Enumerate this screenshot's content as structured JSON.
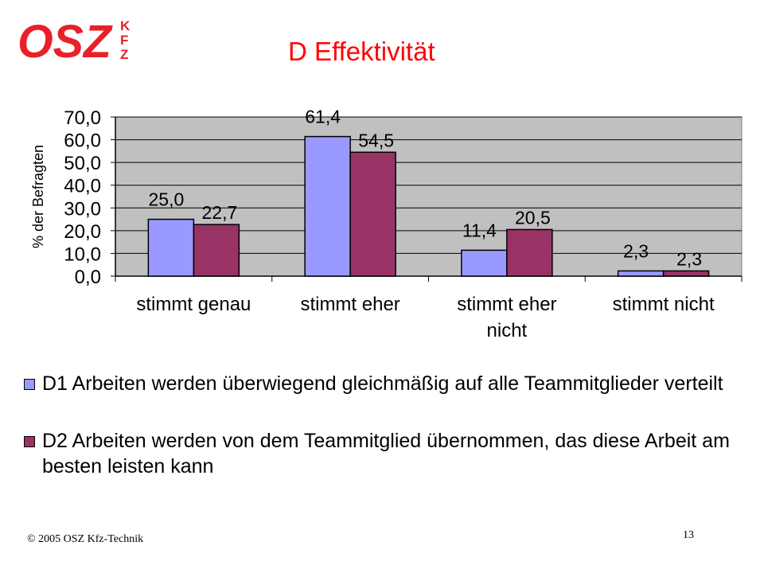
{
  "slide": {
    "title": "D Effektivität",
    "logo_text": "OSZ",
    "logo_side_letters": [
      "K",
      "F",
      "Z"
    ],
    "copyright": "© 2005 OSZ Kfz-Technik",
    "page_number": "13"
  },
  "colors": {
    "title": "#ff0000",
    "logo": "#e8202a",
    "d1": "#9999ff",
    "d2": "#993366",
    "plot_bg": "#c0c0c0"
  },
  "chart_data": {
    "type": "bar",
    "ylabel": "% der Befragten",
    "ylim": [
      0,
      70
    ],
    "yticks": [
      "0,0",
      "10,0",
      "20,0",
      "30,0",
      "40,0",
      "50,0",
      "60,0",
      "70,0"
    ],
    "grid": true,
    "legend": "bottom",
    "categories": [
      [
        "stimmt genau"
      ],
      [
        "stimmt eher"
      ],
      [
        "stimmt eher",
        "nicht"
      ],
      [
        "stimmt nicht"
      ]
    ],
    "series": [
      {
        "name": "D1 Arbeiten werden überwiegend gleichmäßig auf alle Teammitglieder verteilt",
        "color": "#9999ff",
        "values": [
          25.0,
          61.4,
          11.4,
          2.3
        ],
        "labels": [
          "25,0",
          "61,4",
          "11,4",
          "2,3"
        ]
      },
      {
        "name": "D2 Arbeiten werden von dem Teammitglied übernommen, das diese Arbeit am besten leisten kann",
        "color": "#993366",
        "values": [
          22.7,
          54.5,
          20.5,
          2.3
        ],
        "labels": [
          "22,7",
          "54,5",
          "20,5",
          "2,3"
        ]
      }
    ]
  }
}
